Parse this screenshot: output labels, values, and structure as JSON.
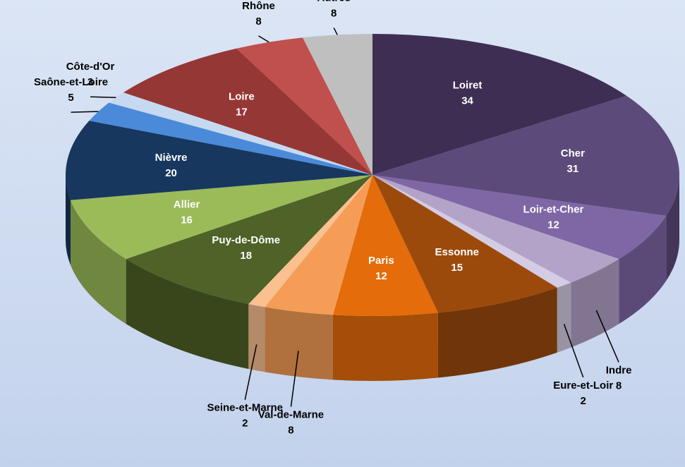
{
  "chart_data": {
    "type": "pie",
    "categories": [
      "Loiret",
      "Cher",
      "Loir-et-Cher",
      "Indre",
      "Eure-et-Loir",
      "Essonne",
      "Paris",
      "Val-de-Marne",
      "Seine-et-Marne",
      "Puy-de-Dôme",
      "Allier",
      "Nièvre",
      "Saône-et-Loire",
      "Côte-d'Or",
      "Loire",
      "Rhône",
      "Autres"
    ],
    "values": [
      34,
      31,
      12,
      8,
      2,
      15,
      12,
      8,
      2,
      18,
      16,
      20,
      5,
      3,
      17,
      8,
      8
    ],
    "colors": [
      "#3f2e53",
      "#5c4a7a",
      "#7f67a6",
      "#b3a3c9",
      "#d4cce4",
      "#9c4a0c",
      "#e46c0a",
      "#f59d56",
      "#fac090",
      "#4f6228",
      "#9bbb59",
      "#17375e",
      "#4a8ad8",
      "#c6d9f1",
      "#953735",
      "#c0504d",
      "#bfbfbf"
    ]
  }
}
